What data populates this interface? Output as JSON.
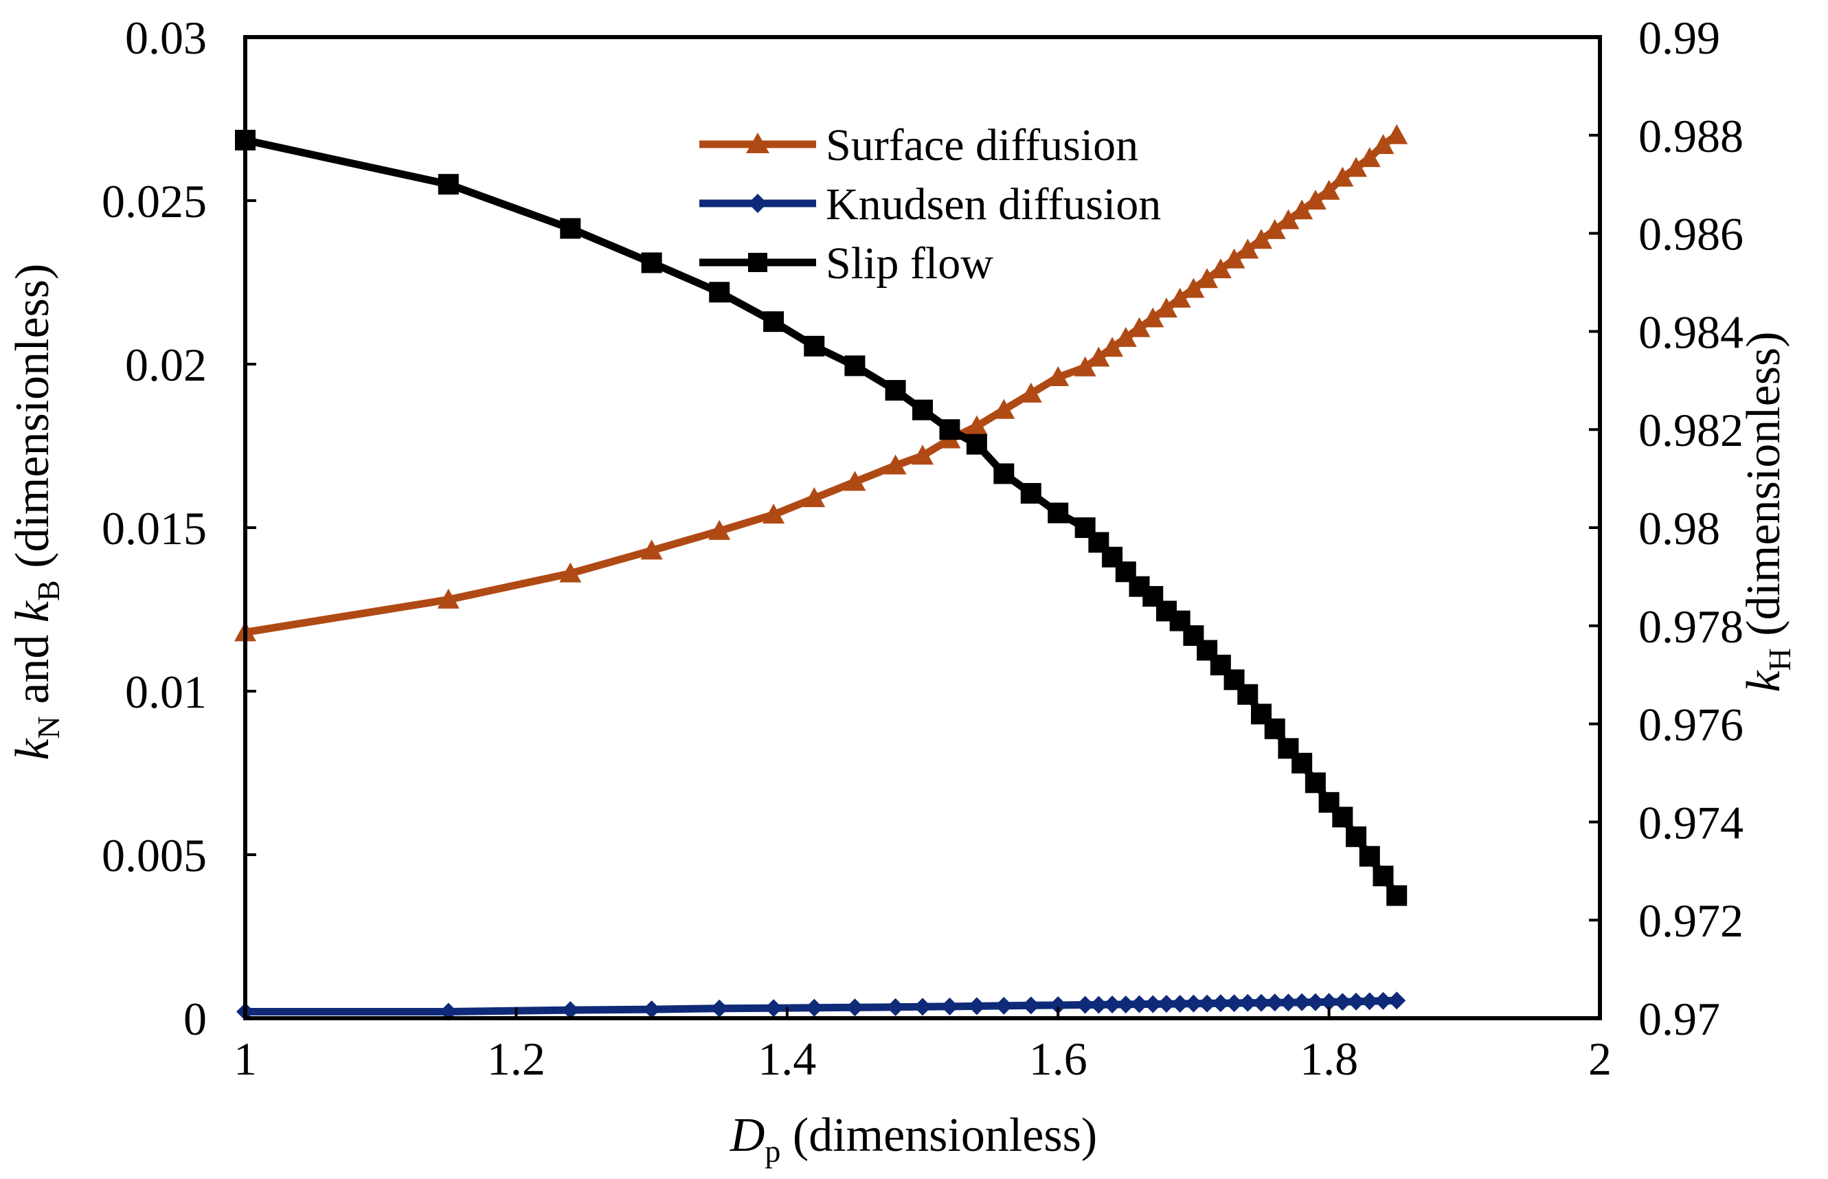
{
  "chart_data": {
    "type": "line",
    "xlabel": {
      "main": "D",
      "sub": "p",
      "rest": " (dimensionless)"
    },
    "ylabel_left": {
      "k1": "k",
      "sub1": "N",
      "mid": " and ",
      "k2": "k",
      "sub2": "B",
      "rest": " (dimensionless)"
    },
    "ylabel_right": {
      "k": "k",
      "sub": "H",
      "rest": " (dimensionless)"
    },
    "xlim": [
      1,
      2
    ],
    "ylim_left": [
      0,
      0.03
    ],
    "ylim_right": [
      0.97,
      0.99
    ],
    "x_ticks": [
      "1",
      "1.2",
      "1.4",
      "1.6",
      "1.8",
      "2"
    ],
    "x_tick_values": [
      1,
      1.2,
      1.4,
      1.6,
      1.8,
      2
    ],
    "y_left_ticks": [
      "0",
      "0.005",
      "0.01",
      "0.015",
      "0.02",
      "0.025",
      "0.03"
    ],
    "y_left_tick_values": [
      0,
      0.005,
      0.01,
      0.015,
      0.02,
      0.025,
      0.03
    ],
    "y_right_ticks": [
      "0.97",
      "0.972",
      "0.974",
      "0.976",
      "0.978",
      "0.98",
      "0.982",
      "0.984",
      "0.986",
      "0.988",
      "0.99"
    ],
    "y_right_tick_values": [
      0.97,
      0.972,
      0.974,
      0.976,
      0.978,
      0.98,
      0.982,
      0.984,
      0.986,
      0.988,
      0.99
    ],
    "x": [
      1.0,
      1.15,
      1.24,
      1.3,
      1.35,
      1.39,
      1.42,
      1.45,
      1.48,
      1.5,
      1.52,
      1.54,
      1.56,
      1.58,
      1.6,
      1.62,
      1.63,
      1.64,
      1.65,
      1.66,
      1.67,
      1.68,
      1.69,
      1.7,
      1.71,
      1.72,
      1.73,
      1.74,
      1.75,
      1.76,
      1.77,
      1.78,
      1.79,
      1.8,
      1.81,
      1.82,
      1.83,
      1.84,
      1.85
    ],
    "series": [
      {
        "name": "Surface diffusion",
        "axis": "left",
        "color": "#b04a14",
        "marker": "triangle",
        "values": [
          0.0118,
          0.0128,
          0.0136,
          0.0143,
          0.0149,
          0.0154,
          0.0159,
          0.0164,
          0.0169,
          0.0172,
          0.0177,
          0.0181,
          0.0186,
          0.0191,
          0.0196,
          0.0199,
          0.0202,
          0.0205,
          0.0208,
          0.0211,
          0.0214,
          0.0217,
          0.022,
          0.0223,
          0.0226,
          0.0229,
          0.0232,
          0.0235,
          0.0238,
          0.0241,
          0.0244,
          0.0247,
          0.025,
          0.0253,
          0.0257,
          0.026,
          0.0263,
          0.0267,
          0.027
        ]
      },
      {
        "name": "Knudsen diffusion",
        "axis": "left",
        "color": "#0f2a78",
        "marker": "diamond",
        "values": [
          0.0002,
          0.0002,
          0.00025,
          0.00027,
          0.0003,
          0.00031,
          0.00032,
          0.00033,
          0.00034,
          0.00035,
          0.00036,
          0.00037,
          0.00038,
          0.00039,
          0.0004,
          0.00041,
          0.00041,
          0.00042,
          0.00042,
          0.00043,
          0.00043,
          0.00044,
          0.00044,
          0.00045,
          0.00045,
          0.00046,
          0.00046,
          0.00047,
          0.00047,
          0.00048,
          0.00048,
          0.00049,
          0.00049,
          0.0005,
          0.0005,
          0.00051,
          0.00052,
          0.00053,
          0.00054
        ]
      },
      {
        "name": "Slip flow",
        "axis": "right",
        "color": "#000000",
        "marker": "square",
        "values": [
          0.9879,
          0.987,
          0.9861,
          0.9854,
          0.9848,
          0.9842,
          0.9837,
          0.9833,
          0.9828,
          0.9824,
          0.982,
          0.9817,
          0.9811,
          0.9807,
          0.9803,
          0.98,
          0.9797,
          0.9794,
          0.9791,
          0.9788,
          0.9786,
          0.9783,
          0.9781,
          0.9778,
          0.9775,
          0.9772,
          0.9769,
          0.9766,
          0.9762,
          0.9759,
          0.9755,
          0.9752,
          0.9748,
          0.9744,
          0.9741,
          0.9737,
          0.9733,
          0.9729,
          0.9725
        ]
      }
    ],
    "legend_position": "top-center"
  }
}
